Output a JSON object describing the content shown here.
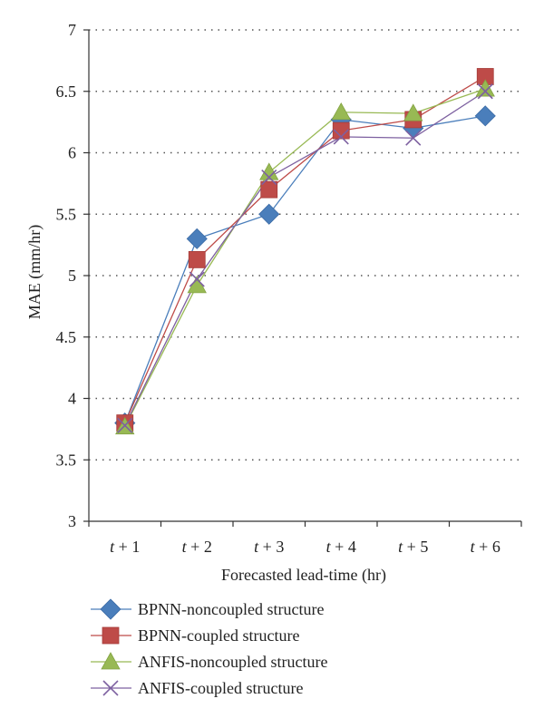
{
  "chart_data": {
    "type": "line",
    "xlabel": "Forecasted lead-time (hr)",
    "ylabel": "MAE (mm/hr)",
    "ylim": [
      3,
      7
    ],
    "yticks": [
      "3",
      "3.5",
      "4",
      "4.5",
      "5",
      "5.5",
      "6",
      "6.5",
      "7"
    ],
    "categories": [
      {
        "var": "t",
        "rest": " + 1"
      },
      {
        "var": "t",
        "rest": " + 2"
      },
      {
        "var": "t",
        "rest": " + 3"
      },
      {
        "var": "t",
        "rest": " + 4"
      },
      {
        "var": "t",
        "rest": " + 5"
      },
      {
        "var": "t",
        "rest": " + 6"
      }
    ],
    "grid": "horizontal dotted",
    "legend_position": "bottom",
    "series": [
      {
        "name": "BPNN-noncoupled structure",
        "marker": "diamond",
        "color": "#4a7ebb",
        "values": [
          3.8,
          5.3,
          5.5,
          6.27,
          6.2,
          6.3
        ]
      },
      {
        "name": "BPNN-coupled structure",
        "marker": "square",
        "color": "#be4b48",
        "values": [
          3.8,
          5.13,
          5.7,
          6.18,
          6.27,
          6.62
        ]
      },
      {
        "name": "ANFIS-noncoupled structure",
        "marker": "triangle",
        "color": "#98b954",
        "values": [
          3.77,
          4.92,
          5.84,
          6.33,
          6.32,
          6.52
        ]
      },
      {
        "name": "ANFIS-coupled structure",
        "marker": "x",
        "color": "#7d60a0",
        "values": [
          3.78,
          4.97,
          5.8,
          6.13,
          6.12,
          6.5
        ]
      }
    ]
  }
}
